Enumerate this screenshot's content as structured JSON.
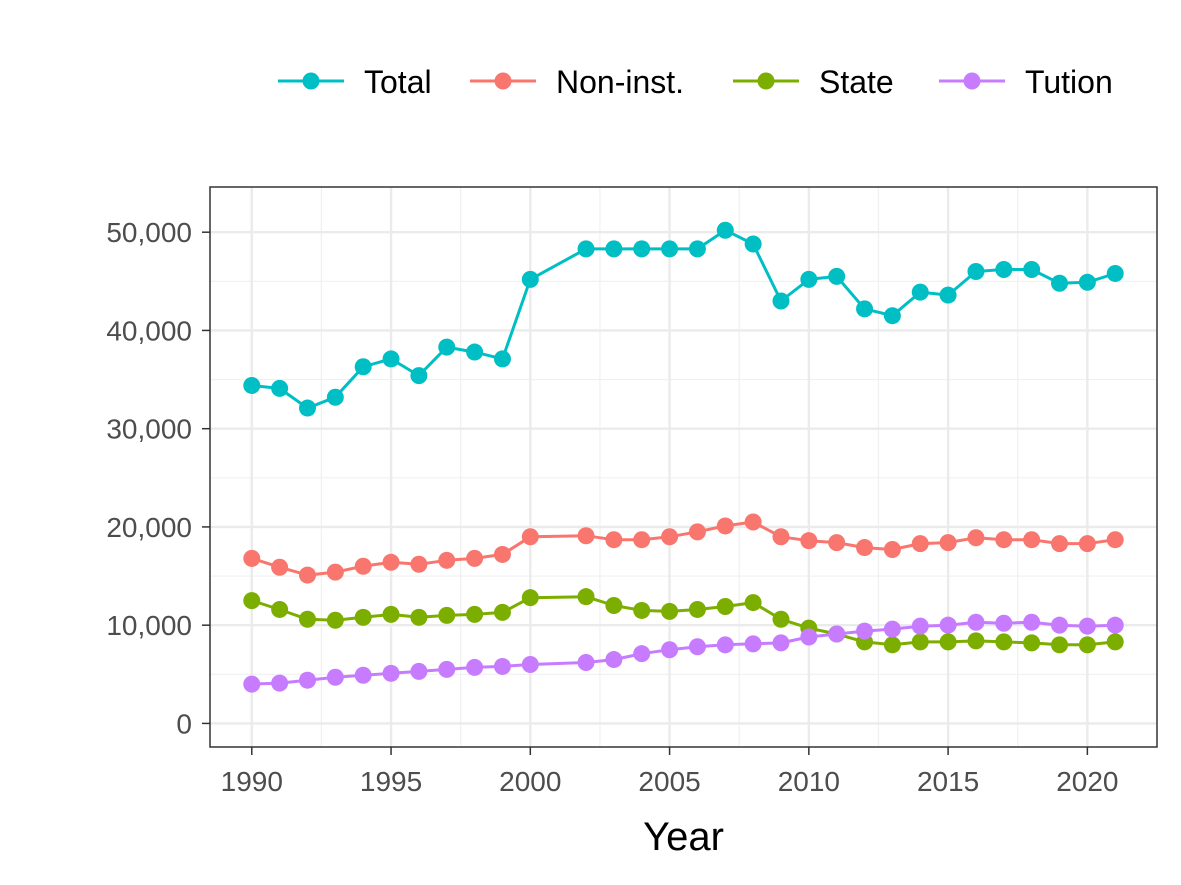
{
  "chart_data": {
    "type": "line",
    "title": "",
    "xlabel": "Year",
    "ylabel": "",
    "xlim": [
      1988.5,
      2022.5
    ],
    "ylim": [
      -2400,
      54600
    ],
    "x_ticks": [
      1990,
      1995,
      2000,
      2005,
      2010,
      2015,
      2020
    ],
    "x_tick_labels": [
      "1990",
      "1995",
      "2000",
      "2005",
      "2010",
      "2015",
      "2020"
    ],
    "y_ticks": [
      0,
      10000,
      20000,
      30000,
      40000,
      50000
    ],
    "y_tick_labels": [
      "0",
      "10,000",
      "20,000",
      "30,000",
      "40,000",
      "50,000"
    ],
    "grid": true,
    "legend_position": "top",
    "x": [
      1990,
      1991,
      1992,
      1993,
      1994,
      1995,
      1996,
      1997,
      1998,
      1999,
      2000,
      2002,
      2003,
      2004,
      2005,
      2006,
      2007,
      2008,
      2009,
      2010,
      2011,
      2012,
      2013,
      2014,
      2015,
      2016,
      2017,
      2018,
      2019,
      2020,
      2021
    ],
    "series": [
      {
        "name": "Total",
        "color": "#00BFC4",
        "values": [
          34400,
          34100,
          32100,
          33200,
          36300,
          37100,
          35400,
          38300,
          37800,
          37100,
          45200,
          48300,
          48300,
          48300,
          48300,
          48300,
          50200,
          48800,
          43000,
          45200,
          45500,
          42200,
          41500,
          43900,
          43600,
          46000,
          46200,
          46200,
          44800,
          44900,
          45800
        ]
      },
      {
        "name": "Non-inst.",
        "color": "#F8766D",
        "values": [
          16800,
          15900,
          15100,
          15400,
          16000,
          16400,
          16200,
          16600,
          16800,
          17200,
          19000,
          19100,
          18700,
          18700,
          19000,
          19500,
          20100,
          20500,
          19000,
          18600,
          18400,
          17900,
          17700,
          18300,
          18400,
          18900,
          18700,
          18700,
          18300,
          18300,
          18700
        ]
      },
      {
        "name": "State",
        "color": "#7CAE00",
        "values": [
          12500,
          11600,
          10600,
          10500,
          10800,
          11100,
          10800,
          11000,
          11100,
          11300,
          12800,
          12900,
          12000,
          11500,
          11400,
          11600,
          11900,
          12300,
          10600,
          9700,
          9100,
          8300,
          8000,
          8300,
          8300,
          8400,
          8300,
          8200,
          8000,
          8000,
          8300
        ]
      },
      {
        "name": "Tution",
        "color": "#C77CFF",
        "values": [
          4000,
          4100,
          4400,
          4700,
          4900,
          5100,
          5300,
          5500,
          5700,
          5800,
          6000,
          6200,
          6500,
          7100,
          7500,
          7800,
          8000,
          8100,
          8200,
          8800,
          9100,
          9400,
          9600,
          9900,
          10000,
          10300,
          10200,
          10300,
          10000,
          9900,
          10000
        ]
      }
    ]
  }
}
